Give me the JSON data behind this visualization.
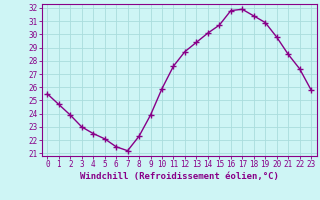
{
  "x": [
    0,
    1,
    2,
    3,
    4,
    5,
    6,
    7,
    8,
    9,
    10,
    11,
    12,
    13,
    14,
    15,
    16,
    17,
    18,
    19,
    20,
    21,
    22,
    23
  ],
  "y": [
    25.5,
    24.7,
    23.9,
    23.0,
    22.5,
    22.1,
    21.5,
    21.2,
    22.3,
    23.9,
    25.9,
    27.6,
    28.7,
    29.4,
    30.1,
    30.7,
    31.8,
    31.9,
    31.4,
    30.9,
    29.8,
    28.5,
    27.4,
    25.8
  ],
  "line_color": "#880088",
  "marker": "+",
  "bg_color": "#cef5f5",
  "grid_color": "#aadddd",
  "axis_color": "#880088",
  "tick_color": "#880088",
  "xlabel": "Windchill (Refroidissement éolien,°C)",
  "ylim": [
    21,
    32
  ],
  "yticks": [
    21,
    22,
    23,
    24,
    25,
    26,
    27,
    28,
    29,
    30,
    31,
    32
  ],
  "xticks": [
    0,
    1,
    2,
    3,
    4,
    5,
    6,
    7,
    8,
    9,
    10,
    11,
    12,
    13,
    14,
    15,
    16,
    17,
    18,
    19,
    20,
    21,
    22,
    23
  ],
  "linewidth": 1.0,
  "markersize": 4,
  "font_color": "#880088",
  "xlabel_fontsize": 6.5,
  "tick_fontsize": 5.5
}
